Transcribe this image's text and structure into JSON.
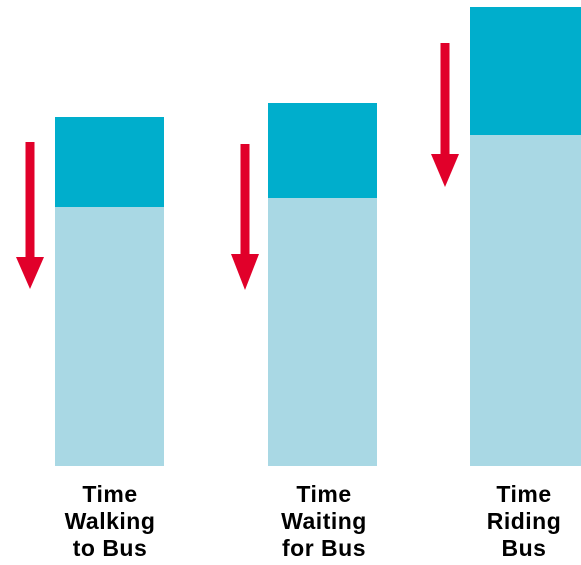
{
  "colors": {
    "bar_light": "#a9d8e4",
    "bar_dark": "#00aecc",
    "arrow": "#e1002a",
    "label_text": "#000000"
  },
  "bars": [
    {
      "id": "walking",
      "label_lines": [
        "Time",
        "Walking",
        "to Bus"
      ],
      "total_units": 349,
      "dark_units": 90
    },
    {
      "id": "waiting",
      "label_lines": [
        "Time",
        "Waiting",
        "for Bus"
      ],
      "total_units": 363,
      "dark_units": 95
    },
    {
      "id": "riding",
      "label_lines": [
        "Time",
        "Riding",
        "Bus"
      ],
      "total_units": 459,
      "dark_units": 128
    }
  ],
  "icons": {
    "arrow": "down-arrow-icon"
  }
}
